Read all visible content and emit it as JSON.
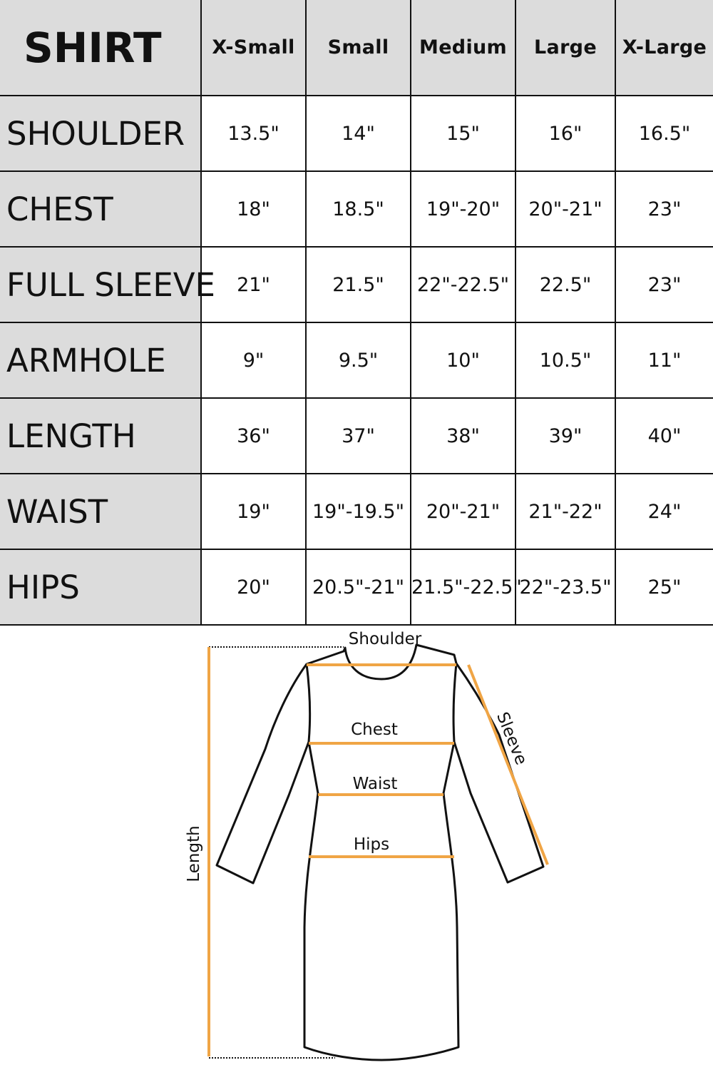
{
  "table": {
    "title": "SHIRT",
    "columns": [
      "X-Small",
      "Small",
      "Medium",
      "Large",
      "X-Large"
    ],
    "rows": [
      {
        "label": "SHOULDER",
        "values": [
          "13.5\"",
          "14\"",
          "15\"",
          "16\"",
          "16.5\""
        ]
      },
      {
        "label": "CHEST",
        "values": [
          "18\"",
          "18.5\"",
          "19\"-20\"",
          "20\"-21\"",
          "23\""
        ]
      },
      {
        "label": "FULL SLEEVE",
        "values": [
          "21\"",
          "21.5\"",
          "22\"-22.5\"",
          "22.5\"",
          "23\""
        ]
      },
      {
        "label": "ARMHOLE",
        "values": [
          "9\"",
          "9.5\"",
          "10\"",
          "10.5\"",
          "11\""
        ]
      },
      {
        "label": "LENGTH",
        "values": [
          "36\"",
          "37\"",
          "38\"",
          "39\"",
          "40\""
        ]
      },
      {
        "label": "WAIST",
        "values": [
          "19\"",
          "19\"-19.5\"",
          "20\"-21\"",
          "21\"-22\"",
          "24\""
        ]
      },
      {
        "label": "HIPS",
        "values": [
          "20\"",
          "20.5\"-21\"",
          "21.5\"-22.5\"",
          "22\"-23.5\"",
          "25\""
        ]
      }
    ]
  },
  "diagram": {
    "labels": {
      "shoulder": "Shoulder",
      "chest": "Chest",
      "waist": "Waist",
      "hips": "Hips",
      "length": "Length",
      "sleeve": "Sleeve"
    },
    "measure_color": "#f0a545",
    "header_bg": "#dcdcdc"
  }
}
